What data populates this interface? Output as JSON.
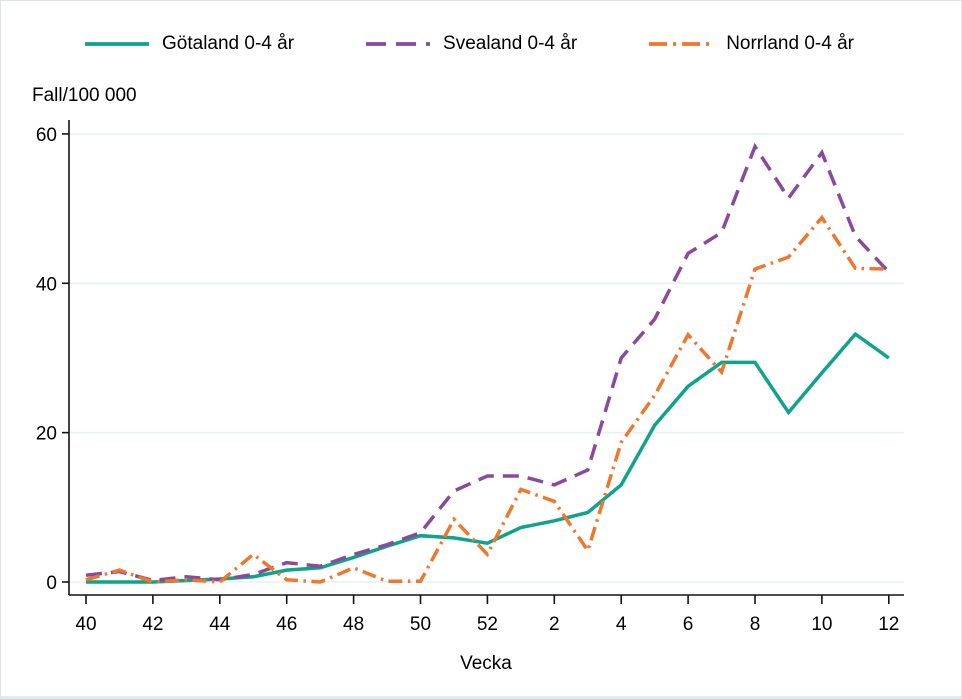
{
  "chart_data": {
    "type": "line",
    "title": "",
    "ylabel": "Fall/100 000",
    "xlabel": "Vecka",
    "x_tick_labels": [
      "40",
      "42",
      "44",
      "46",
      "48",
      "50",
      "52",
      "2",
      "4",
      "6",
      "8",
      "10",
      "12"
    ],
    "y_tick_labels": [
      "0",
      "20",
      "40",
      "60"
    ],
    "y_ticks": [
      0,
      20,
      40,
      60
    ],
    "ylim": [
      0,
      62
    ],
    "grid": "horizontal-only",
    "legend_position": "top",
    "categories": [
      "40",
      "41",
      "42",
      "43",
      "44",
      "45",
      "46",
      "47",
      "48",
      "49",
      "50",
      "51",
      "52",
      "1",
      "2",
      "3",
      "4",
      "5",
      "6",
      "7",
      "8",
      "9",
      "10",
      "11",
      "12"
    ],
    "series": [
      {
        "name": "Götaland 0-4 år",
        "color": "#0fa38c",
        "style": "solid",
        "values": [
          0,
          0,
          0,
          0.2,
          0.4,
          0.7,
          1.6,
          1.9,
          3.3,
          4.8,
          6.2,
          5.9,
          5.2,
          7.3,
          8.2,
          9.3,
          13,
          21,
          26.2,
          29.4,
          29.4,
          22.7,
          28,
          33.2,
          30
        ]
      },
      {
        "name": "Svealand 0-4 år",
        "color": "#8a4a9c",
        "style": "dashed",
        "values": [
          0.9,
          1.4,
          0.2,
          0.7,
          0.3,
          1,
          2.6,
          2.1,
          3.7,
          5,
          6.6,
          12.2,
          14.2,
          14.2,
          13,
          15,
          30,
          35.2,
          44,
          46.8,
          58.3,
          51.4,
          57.5,
          46.3,
          41.5
        ]
      },
      {
        "name": "Norrland 0-4 år",
        "color": "#f1762d",
        "style": "dashdot",
        "values": [
          0.3,
          1.6,
          0,
          0.3,
          0,
          3.7,
          0.3,
          0,
          1.9,
          0.1,
          0.1,
          8.4,
          3.7,
          12.4,
          10.8,
          4.2,
          18.7,
          25,
          33.1,
          28.1,
          41.9,
          43.5,
          48.8,
          42,
          41.9
        ]
      }
    ]
  },
  "colors": {
    "grid": "#e7f0f3",
    "axis": "#141414",
    "text": "#000000",
    "background": "#ffffff"
  }
}
